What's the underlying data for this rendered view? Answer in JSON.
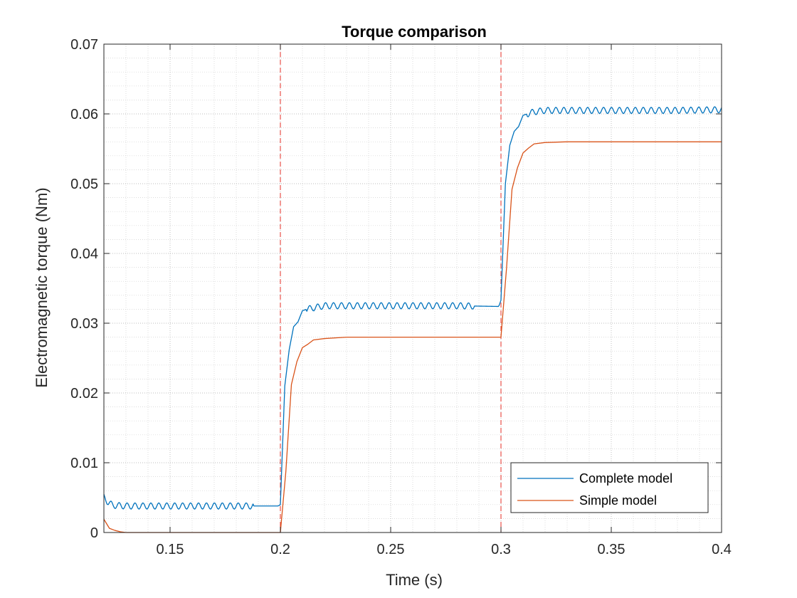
{
  "chart_data": {
    "type": "line",
    "title": "Torque comparison",
    "xlabel": "Time (s)",
    "ylabel": "Electromagnetic torque (Nm)",
    "xlim": [
      0.12,
      0.4
    ],
    "ylim": [
      0,
      0.07
    ],
    "xticks": [
      0.15,
      0.2,
      0.25,
      0.3,
      0.35,
      0.4
    ],
    "xtick_labels": [
      "0.15",
      "0.2",
      "0.25",
      "0.3",
      "0.35",
      "0.4"
    ],
    "yticks": [
      0,
      0.01,
      0.02,
      0.03,
      0.04,
      0.05,
      0.06,
      0.07
    ],
    "ytick_labels": [
      "0",
      "0.01",
      "0.02",
      "0.03",
      "0.04",
      "0.05",
      "0.06",
      "0.07"
    ],
    "grid": "major and minor, dotted",
    "legend_position": "bottom-right",
    "vlines": [
      0.2,
      0.3
    ],
    "vline_color": "#e8413a",
    "series": [
      {
        "name": "Complete model",
        "color": "#0072BD",
        "x": [
          0.12,
          0.122,
          0.124,
          0.13,
          0.15,
          0.18,
          0.199,
          0.2,
          0.202,
          0.204,
          0.206,
          0.208,
          0.21,
          0.212,
          0.215,
          0.22,
          0.25,
          0.28,
          0.299,
          0.3,
          0.302,
          0.304,
          0.306,
          0.308,
          0.31,
          0.312,
          0.315,
          0.32,
          0.35,
          0.38,
          0.4
        ],
        "y": [
          0.0051,
          0.0043,
          0.0039,
          0.0038,
          0.0038,
          0.0038,
          0.0038,
          0.004,
          0.021,
          0.0262,
          0.0295,
          0.0302,
          0.0318,
          0.032,
          0.0322,
          0.0325,
          0.0325,
          0.0325,
          0.0324,
          0.0333,
          0.05,
          0.0555,
          0.0575,
          0.0582,
          0.0598,
          0.06,
          0.0603,
          0.0605,
          0.0605,
          0.0605,
          0.0606
        ],
        "ripple_amplitude": 0.00045,
        "ripple_period": 0.0036
      },
      {
        "name": "Simple model",
        "color": "#D95319",
        "x": [
          0.12,
          0.1225,
          0.125,
          0.1275,
          0.13,
          0.135,
          0.14,
          0.16,
          0.18,
          0.2,
          0.2025,
          0.205,
          0.2075,
          0.21,
          0.2125,
          0.215,
          0.22,
          0.23,
          0.25,
          0.28,
          0.3,
          0.3025,
          0.305,
          0.3075,
          0.31,
          0.3125,
          0.315,
          0.32,
          0.33,
          0.35,
          0.4
        ],
        "y": [
          0.0019,
          0.0006,
          0.0003,
          0.0001,
          0.0,
          0.0,
          0.0,
          0.0,
          0.0,
          0.0,
          0.0088,
          0.0212,
          0.0245,
          0.0265,
          0.027,
          0.0276,
          0.0278,
          0.028,
          0.028,
          0.028,
          0.028,
          0.0378,
          0.0492,
          0.0523,
          0.0544,
          0.0551,
          0.0557,
          0.0559,
          0.056,
          0.056,
          0.056
        ]
      }
    ]
  }
}
